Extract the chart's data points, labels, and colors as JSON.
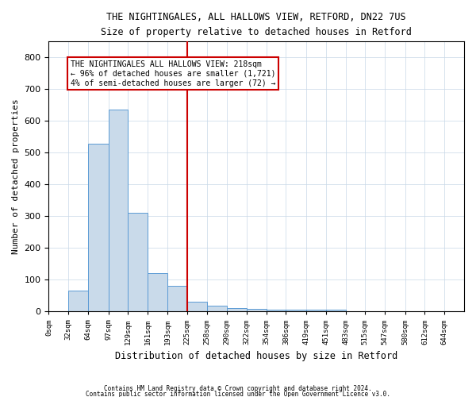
{
  "title": "THE NIGHTINGALES, ALL HALLOWS VIEW, RETFORD, DN22 7US",
  "subtitle": "Size of property relative to detached houses in Retford",
  "xlabel": "Distribution of detached houses by size in Retford",
  "ylabel": "Number of detached properties",
  "footer1": "Contains HM Land Registry data © Crown copyright and database right 2024.",
  "footer2": "Contains public sector information licensed under the Open Government Licence v3.0.",
  "bar_labels": [
    "0sqm",
    "32sqm",
    "64sqm",
    "97sqm",
    "129sqm",
    "161sqm",
    "193sqm",
    "225sqm",
    "258sqm",
    "290sqm",
    "322sqm",
    "354sqm",
    "386sqm",
    "419sqm",
    "451sqm",
    "483sqm",
    "515sqm",
    "547sqm",
    "580sqm",
    "612sqm",
    "644sqm"
  ],
  "bar_values": [
    0,
    67,
    528,
    635,
    312,
    120,
    80,
    30,
    18,
    12,
    8,
    7,
    5,
    5,
    5,
    0,
    0,
    0,
    0,
    0,
    0
  ],
  "bar_color": "#c9daea",
  "bar_edgecolor": "#5b9bd5",
  "vline_x": 225,
  "vline_color": "#cc0000",
  "annotation_text": "THE NIGHTINGALES ALL HALLOWS VIEW: 218sqm\n← 96% of detached houses are smaller (1,721)\n4% of semi-detached houses are larger (72) →",
  "annotation_box_color": "#ffffff",
  "annotation_box_edgecolor": "#cc0000",
  "ylim": [
    0,
    850
  ],
  "yticks": [
    0,
    100,
    200,
    300,
    400,
    500,
    600,
    700,
    800
  ],
  "bin_edges": [
    0,
    32,
    64,
    97,
    129,
    161,
    193,
    225,
    258,
    290,
    322,
    354,
    386,
    419,
    451,
    483,
    515,
    547,
    580,
    612,
    644
  ],
  "xlim_right": 676
}
